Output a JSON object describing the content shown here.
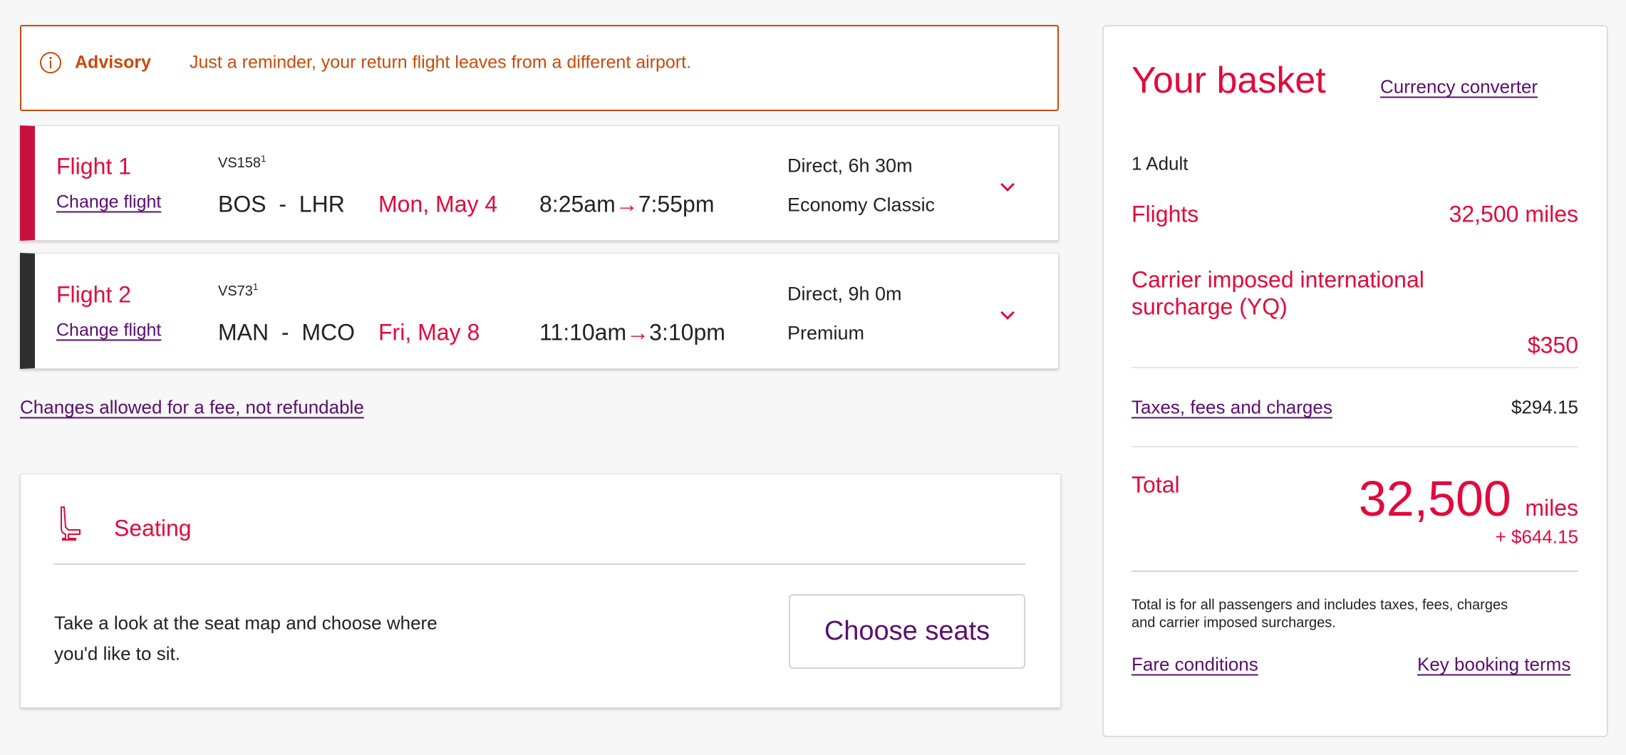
{
  "advisory": {
    "title": "Advisory",
    "message": "Just a reminder, your return flight leaves from a different airport.",
    "icon": "info-icon"
  },
  "flights": [
    {
      "title": "Flight 1",
      "change_label": "Change flight",
      "flight_no": "VS158",
      "note": "1",
      "route_from": "BOS",
      "route_sep": "-",
      "route_to": "LHR",
      "date": "Mon, May 4",
      "depart": "8:25am",
      "arrive": "7:55pm",
      "duration": "Direct, 6h 30m",
      "cabin": "Economy Classic",
      "accent": "#c8103e"
    },
    {
      "title": "Flight 2",
      "change_label": "Change flight",
      "flight_no": "VS73",
      "note": "1",
      "route_from": "MAN",
      "route_sep": "-",
      "route_to": "MCO",
      "date": "Fri, May 8",
      "depart": "11:10am",
      "arrive": "3:10pm",
      "duration": "Direct, 9h 0m",
      "cabin": "Premium",
      "accent": "#333333"
    }
  ],
  "changes_link": "Changes allowed for a fee, not refundable",
  "seating": {
    "title": "Seating",
    "description_line1": "Take a look at the seat map and choose where",
    "description_line2": "you'd like to sit.",
    "button": "Choose seats"
  },
  "basket": {
    "title": "Your basket",
    "currency_link": "Currency converter",
    "passengers": "1 Adult",
    "flights_label": "Flights",
    "flights_value": "32,500 miles",
    "surcharge_line1": "Carrier imposed international",
    "surcharge_line2": "surcharge (YQ)",
    "surcharge_value": "$350",
    "taxes_label": "Taxes, fees and charges",
    "taxes_value": "$294.15",
    "total_label": "Total",
    "total_miles": "32,500",
    "total_miles_unit": "miles",
    "total_cash": "+ $644.15",
    "fine_print_line1": "Total is for all passengers and includes taxes, fees, charges",
    "fine_print_line2": "and carrier imposed surcharges.",
    "fare_conditions": "Fare conditions",
    "key_terms": "Key booking terms"
  },
  "colors": {
    "brand_red": "#e10a3c",
    "link_purple": "#5a0f6e",
    "advisory_orange": "#c84b0c"
  }
}
